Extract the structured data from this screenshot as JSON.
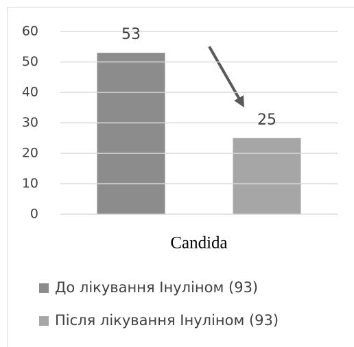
{
  "chart_data": {
    "type": "bar",
    "categories": [
      "Candida"
    ],
    "series": [
      {
        "name": "До лікування Інуліном (93)",
        "color": "#8c8c8c",
        "values": [
          53
        ]
      },
      {
        "name": "Після лікування Інуліном (93)",
        "color": "#a6a6a6",
        "values": [
          25
        ]
      }
    ],
    "ylim": [
      0,
      60
    ],
    "yticks": [
      0,
      10,
      20,
      30,
      40,
      50,
      60
    ],
    "grid": true,
    "legend": "bottom"
  }
}
